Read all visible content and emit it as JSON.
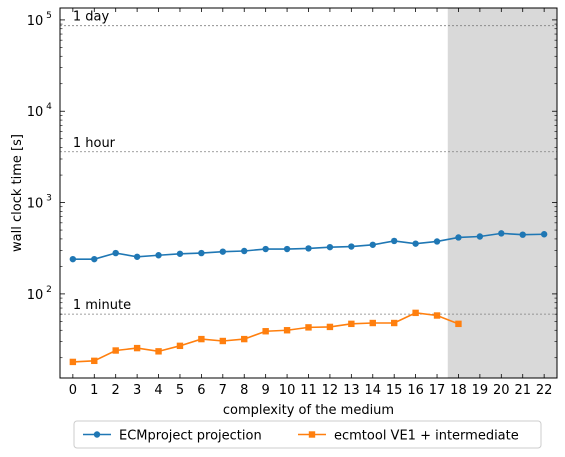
{
  "chart_data": {
    "type": "line",
    "xlabel": "complexity of the medium",
    "ylabel": "wall clock time [s]",
    "yscale": "log",
    "xlim": [
      -0.6,
      22.6
    ],
    "ylim": [
      12,
      135000
    ],
    "x_ticks": [
      0,
      1,
      2,
      3,
      4,
      5,
      6,
      7,
      8,
      9,
      10,
      11,
      12,
      13,
      14,
      15,
      16,
      17,
      18,
      19,
      20,
      21,
      22
    ],
    "y_ticks": [
      {
        "value": 100,
        "label": "10",
        "exp": "2"
      },
      {
        "value": 1000,
        "label": "10",
        "exp": "3"
      },
      {
        "value": 10000,
        "label": "10",
        "exp": "4"
      },
      {
        "value": 100000,
        "label": "10",
        "exp": "5"
      }
    ],
    "shaded_region": {
      "x_from": 17.5,
      "x_to": 22.6,
      "color": "#d9d9d9"
    },
    "reference_lines": [
      {
        "value": 60,
        "label": "1 minute"
      },
      {
        "value": 3600,
        "label": "1 hour"
      },
      {
        "value": 86400,
        "label": "1 day"
      }
    ],
    "legend_position": "bottom-center, below plot",
    "series": [
      {
        "name": "ECMproject projection",
        "color": "#1f77b4",
        "marker": "circle",
        "x": [
          0,
          1,
          2,
          3,
          4,
          5,
          6,
          7,
          8,
          9,
          10,
          11,
          12,
          13,
          14,
          15,
          16,
          17,
          18,
          19,
          20,
          21,
          22
        ],
        "y": [
          240,
          240,
          280,
          255,
          265,
          275,
          280,
          290,
          295,
          310,
          310,
          315,
          325,
          330,
          345,
          380,
          355,
          375,
          415,
          425,
          460,
          445,
          450
        ]
      },
      {
        "name": "ecmtool VE1 + intermediate",
        "color": "#ff7f0e",
        "marker": "square",
        "x": [
          0,
          1,
          2,
          3,
          4,
          5,
          6,
          7,
          8,
          9,
          10,
          11,
          12,
          13,
          14,
          15,
          16,
          17,
          18
        ],
        "y": [
          18,
          18.5,
          24,
          25.5,
          23.5,
          27,
          32,
          30.5,
          32,
          39,
          40,
          43,
          43.5,
          47,
          48,
          48,
          62,
          58,
          47
        ]
      }
    ]
  }
}
